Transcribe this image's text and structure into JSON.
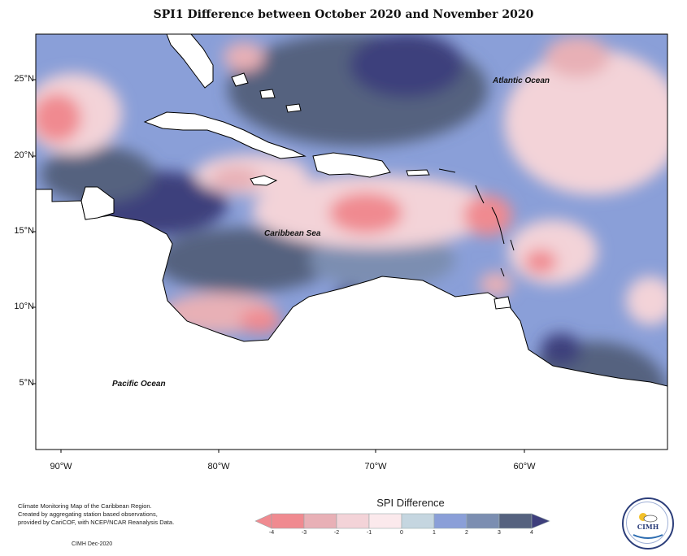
{
  "title": "SPI1 Difference between October 2020 and November 2020",
  "lat_labels": [
    "25°N",
    "20°N",
    "15°N",
    "10°N",
    "5°N"
  ],
  "lon_labels": [
    "90°W",
    "80°W",
    "70°W",
    "60°W"
  ],
  "places": {
    "atlantic": "Atlantic Ocean",
    "caribbean": "Caribbean Sea",
    "pacific": "Pacific Ocean"
  },
  "legend": {
    "title": "SPI Difference",
    "ticks": [
      "-4",
      "-3",
      "-2",
      "-1",
      "0",
      "1",
      "2",
      "3",
      "4"
    ],
    "colors": [
      "#f08a90",
      "#e8b0b6",
      "#f3d3d8",
      "#fbe9ec",
      "#c5d6e0",
      "#8a9fd8",
      "#7b8eb1",
      "#55627f",
      "#3e3f7c"
    ]
  },
  "credits": [
    "Climate Monitoring Map of the Caribbean Region.",
    "Created by aggregating station based observations,",
    "provided by CariCOF, with NCEP/NCAR Reanalysis Data."
  ],
  "footer": "CIMH Dec-2020",
  "logo": {
    "text": "CIMH"
  }
}
